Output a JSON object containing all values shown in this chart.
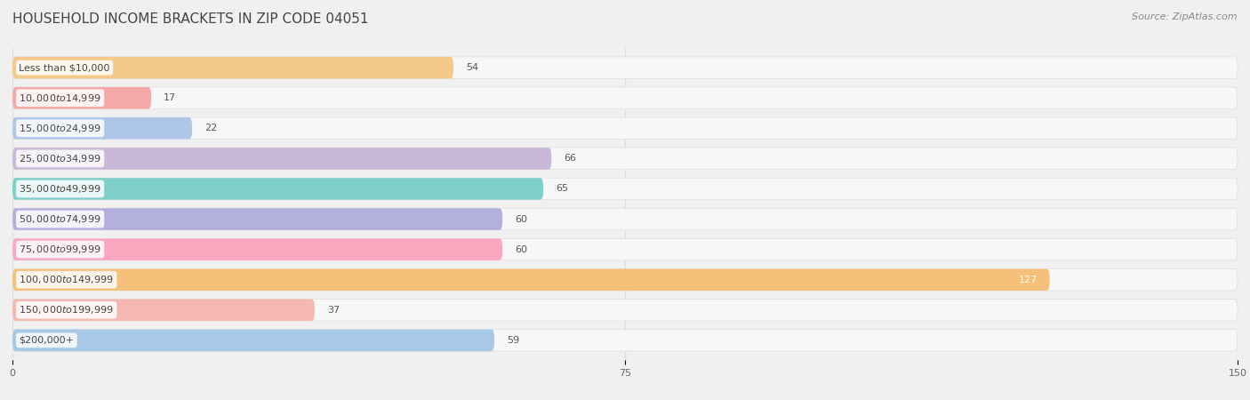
{
  "title": "HOUSEHOLD INCOME BRACKETS IN ZIP CODE 04051",
  "source": "Source: ZipAtlas.com",
  "categories": [
    "Less than $10,000",
    "$10,000 to $14,999",
    "$15,000 to $24,999",
    "$25,000 to $34,999",
    "$35,000 to $49,999",
    "$50,000 to $74,999",
    "$75,000 to $99,999",
    "$100,000 to $149,999",
    "$150,000 to $199,999",
    "$200,000+"
  ],
  "values": [
    54,
    17,
    22,
    66,
    65,
    60,
    60,
    127,
    37,
    59
  ],
  "bar_colors": [
    "#f5c98a",
    "#f4a9a8",
    "#aec6e8",
    "#c9b8d8",
    "#7ececa",
    "#b3b0de",
    "#f9a8c0",
    "#f5c07a",
    "#f4b8b0",
    "#a8c8e8"
  ],
  "xlim": [
    0,
    150
  ],
  "xticks": [
    0,
    75,
    150
  ],
  "page_bg_color": "#f0f0f0",
  "row_bg_color": "#f7f7f7",
  "label_bg_color": "#ffffff",
  "title_fontsize": 11,
  "source_fontsize": 8,
  "label_fontsize": 8,
  "value_fontsize": 8,
  "title_color": "#444444",
  "label_color": "#444444",
  "value_color_outside": "#555555",
  "value_color_inside": "#ffffff",
  "grid_color": "#dddddd"
}
